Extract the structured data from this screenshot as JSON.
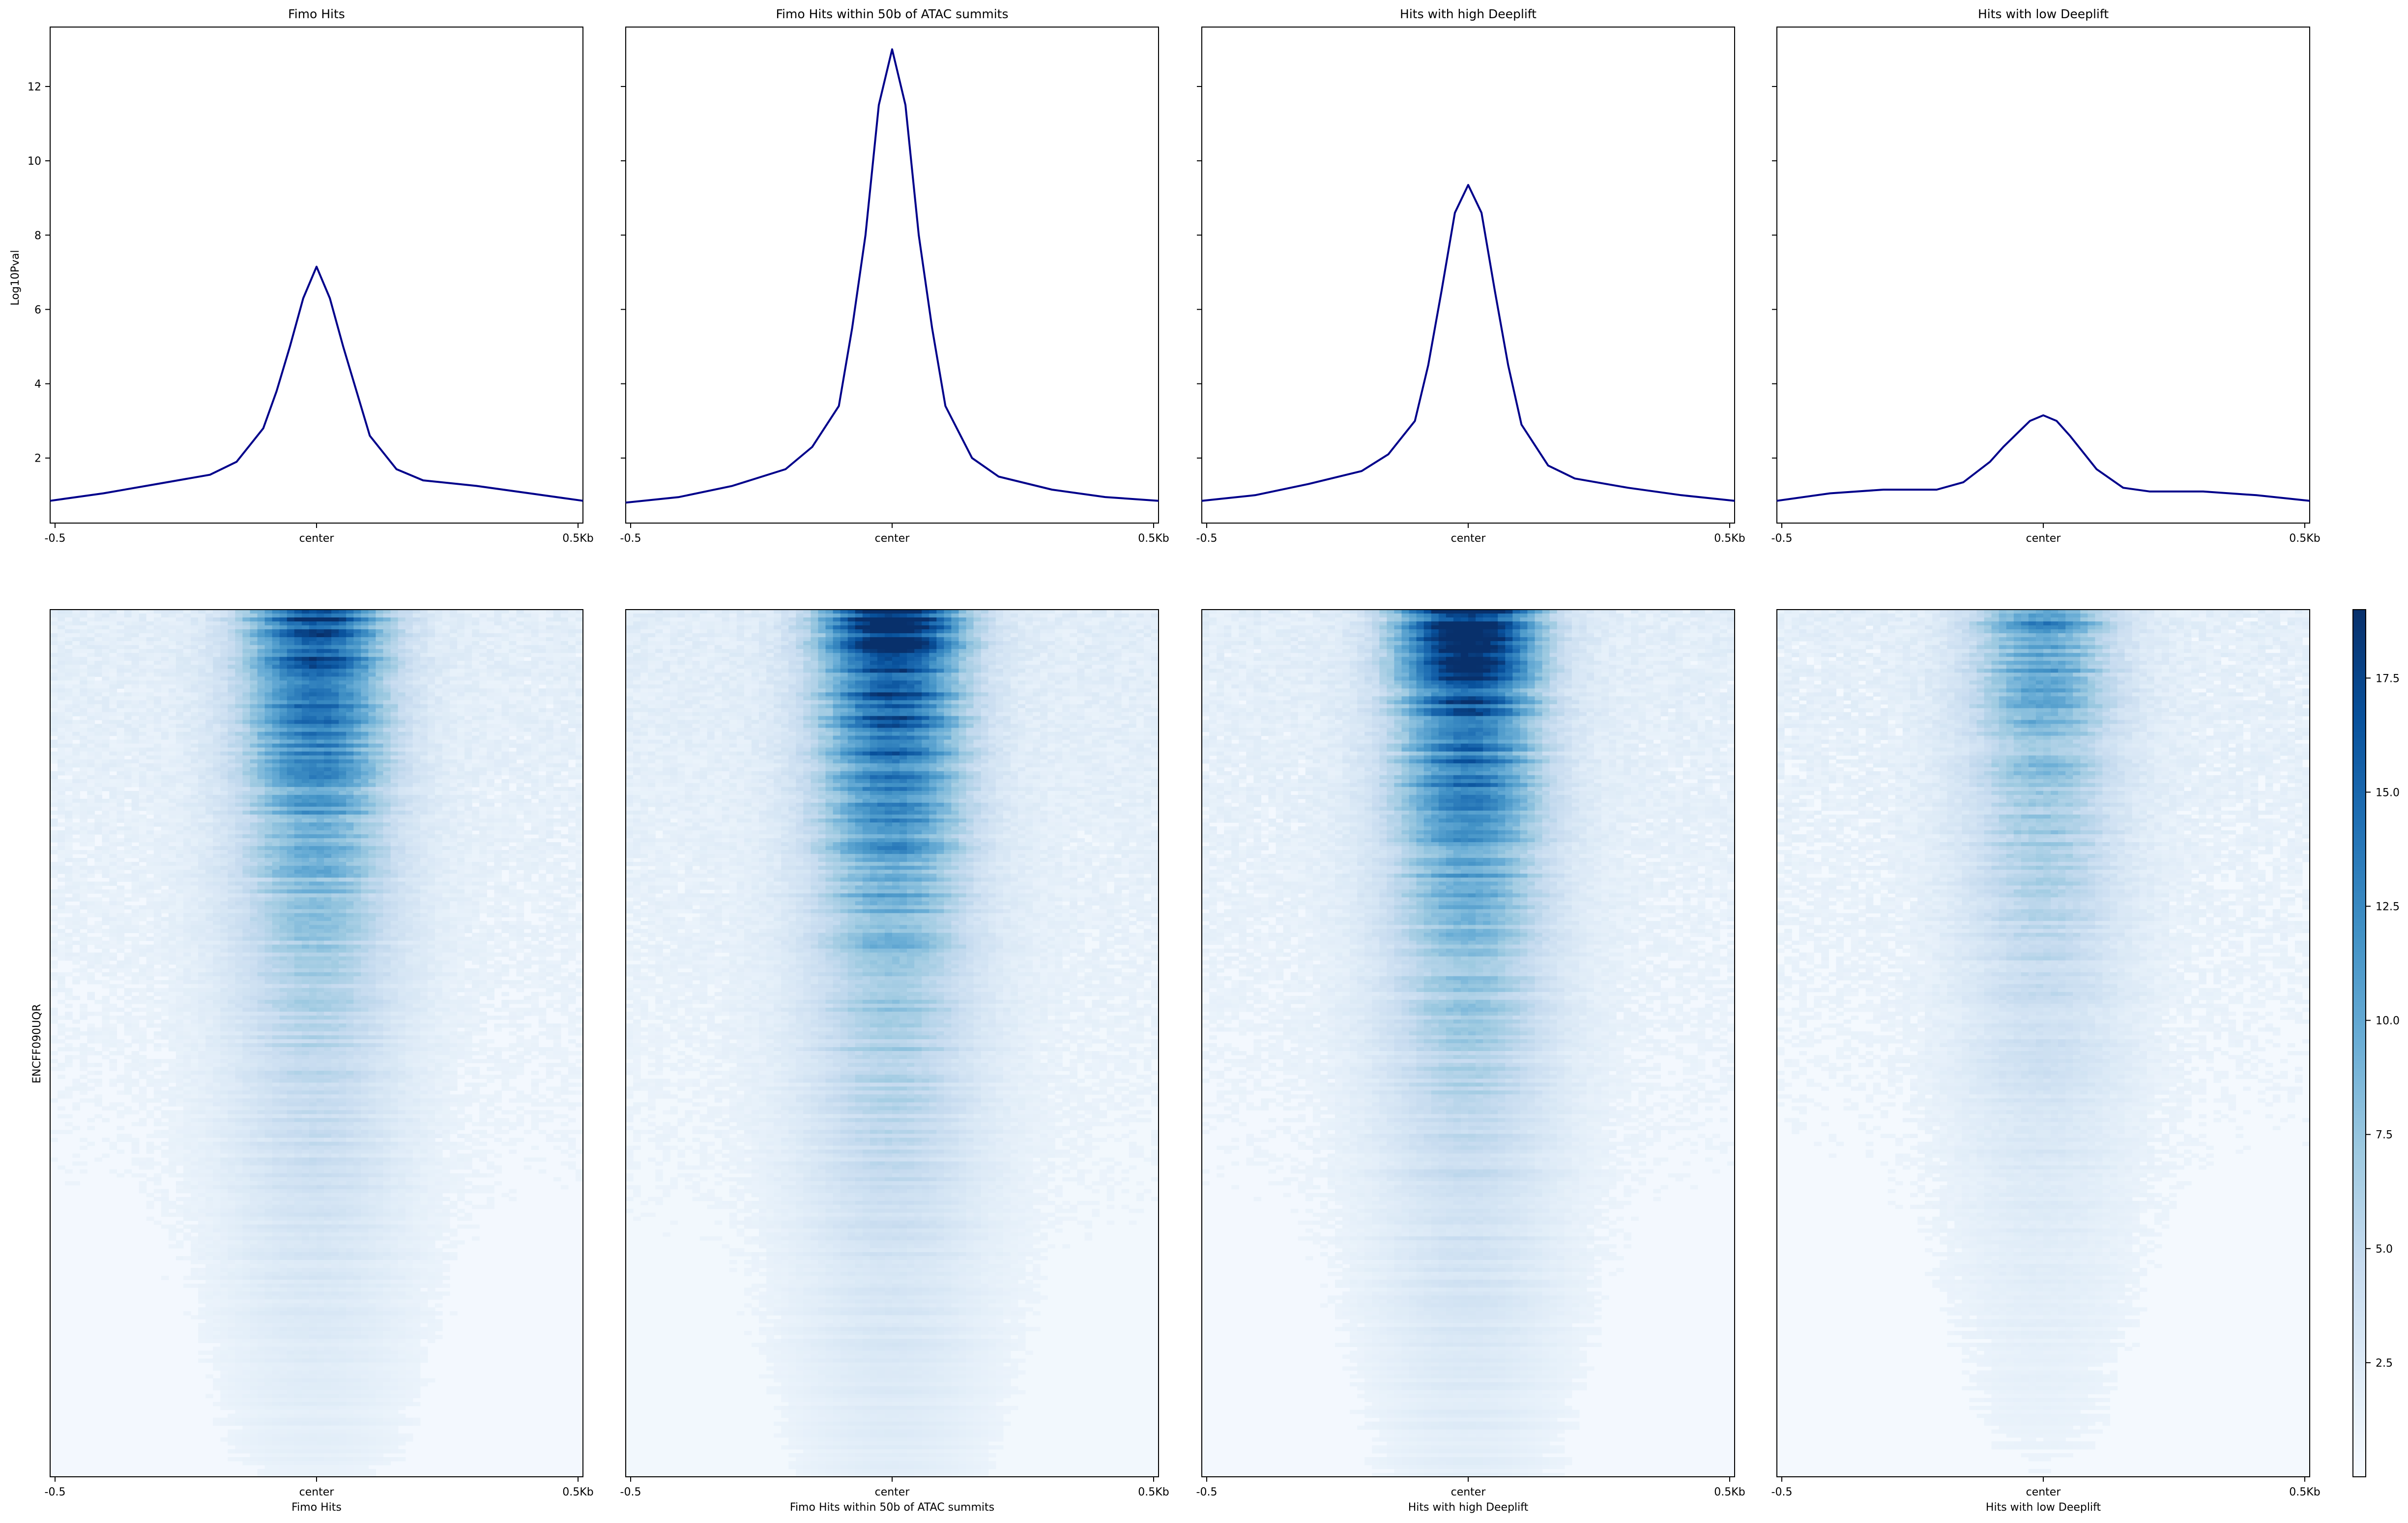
{
  "figure": {
    "ylabel_profile": "Log10Pval",
    "ylabel_heatmap": "ENCFF090UQR"
  },
  "panels": [
    {
      "title": "Fimo Hits",
      "heatmap_xlabel": "Fimo Hits"
    },
    {
      "title": "Fimo Hits within 50b of ATAC summits",
      "heatmap_xlabel": "Fimo Hits within 50b of ATAC summits"
    },
    {
      "title": "Hits with high Deeplift",
      "heatmap_xlabel": "Hits with high Deeplift"
    },
    {
      "title": "Hits with low Deeplift",
      "heatmap_xlabel": "Hits with low Deeplift"
    }
  ],
  "chart_data": [
    {
      "type": "line",
      "title": "Fimo Hits",
      "xlabel": "",
      "ylabel": "Log10Pval",
      "x_ticks": [
        "-0.5",
        "center",
        "0.5Kb"
      ],
      "xlim": [
        -500,
        500
      ],
      "ylim": [
        0.25,
        13.6
      ],
      "y_ticks": [
        2,
        4,
        6,
        8,
        10,
        12
      ],
      "line_color": "#00008b",
      "x": [
        -500,
        -400,
        -300,
        -200,
        -150,
        -100,
        -75,
        -50,
        -25,
        0,
        25,
        50,
        75,
        100,
        150,
        200,
        300,
        400,
        500
      ],
      "y": [
        0.85,
        1.05,
        1.3,
        1.55,
        1.9,
        2.8,
        3.8,
        5.0,
        6.3,
        7.15,
        6.3,
        5.0,
        3.8,
        2.6,
        1.7,
        1.4,
        1.25,
        1.05,
        0.85
      ]
    },
    {
      "type": "line",
      "title": "Fimo Hits within 50b of ATAC summits",
      "xlabel": "",
      "ylabel": "Log10Pval",
      "x_ticks": [
        "-0.5",
        "center",
        "0.5Kb"
      ],
      "xlim": [
        -500,
        500
      ],
      "ylim": [
        0.25,
        13.6
      ],
      "y_ticks": [
        2,
        4,
        6,
        8,
        10,
        12
      ],
      "line_color": "#00008b",
      "x": [
        -500,
        -400,
        -300,
        -200,
        -150,
        -100,
        -75,
        -50,
        -25,
        0,
        25,
        50,
        75,
        100,
        150,
        200,
        300,
        400,
        500
      ],
      "y": [
        0.8,
        0.95,
        1.25,
        1.7,
        2.3,
        3.4,
        5.5,
        8.0,
        11.5,
        13.0,
        11.5,
        8.0,
        5.5,
        3.4,
        2.0,
        1.5,
        1.15,
        0.95,
        0.85
      ]
    },
    {
      "type": "line",
      "title": "Hits with high Deeplift",
      "xlabel": "",
      "ylabel": "Log10Pval",
      "x_ticks": [
        "-0.5",
        "center",
        "0.5Kb"
      ],
      "xlim": [
        -500,
        500
      ],
      "ylim": [
        0.25,
        13.6
      ],
      "y_ticks": [
        2,
        4,
        6,
        8,
        10,
        12
      ],
      "line_color": "#00008b",
      "x": [
        -500,
        -400,
        -300,
        -200,
        -150,
        -100,
        -75,
        -50,
        -25,
        0,
        25,
        50,
        75,
        100,
        150,
        200,
        300,
        400,
        500
      ],
      "y": [
        0.85,
        1.0,
        1.3,
        1.65,
        2.1,
        3.0,
        4.5,
        6.5,
        8.6,
        9.35,
        8.6,
        6.5,
        4.5,
        2.9,
        1.8,
        1.45,
        1.2,
        1.0,
        0.85
      ]
    },
    {
      "type": "line",
      "title": "Hits with low Deeplift",
      "xlabel": "",
      "ylabel": "Log10Pval",
      "x_ticks": [
        "-0.5",
        "center",
        "0.5Kb"
      ],
      "xlim": [
        -500,
        500
      ],
      "ylim": [
        0.25,
        13.6
      ],
      "y_ticks": [
        2,
        4,
        6,
        8,
        10,
        12
      ],
      "line_color": "#00008b",
      "x": [
        -500,
        -400,
        -300,
        -200,
        -150,
        -100,
        -75,
        -50,
        -25,
        0,
        25,
        50,
        75,
        100,
        150,
        200,
        300,
        400,
        500
      ],
      "y": [
        0.85,
        1.05,
        1.15,
        1.15,
        1.35,
        1.9,
        2.3,
        2.65,
        3.0,
        3.15,
        3.0,
        2.6,
        2.15,
        1.7,
        1.2,
        1.1,
        1.1,
        1.0,
        0.85
      ]
    },
    {
      "type": "heatmap",
      "title": "Fimo Hits",
      "xlabel": "Fimo Hits",
      "ylabel": "ENCFF090UQR",
      "x_ticks": [
        "-0.5",
        "center",
        "0.5Kb"
      ],
      "colormap": "Blues",
      "peak_value": 19.0,
      "background_value": 0.4,
      "rows_sorted": "descending"
    },
    {
      "type": "heatmap",
      "title": "Fimo Hits within 50b of ATAC summits",
      "xlabel": "Fimo Hits within 50b of ATAC summits",
      "ylabel": "ENCFF090UQR",
      "x_ticks": [
        "-0.5",
        "center",
        "0.5Kb"
      ],
      "colormap": "Blues",
      "peak_value": 19.0,
      "background_value": 0.5,
      "rows_sorted": "descending"
    },
    {
      "type": "heatmap",
      "title": "Hits with high Deeplift",
      "xlabel": "Hits with high Deeplift",
      "ylabel": "ENCFF090UQR",
      "x_ticks": [
        "-0.5",
        "center",
        "0.5Kb"
      ],
      "colormap": "Blues",
      "peak_value": 19.0,
      "background_value": 0.4,
      "rows_sorted": "descending"
    },
    {
      "type": "heatmap",
      "title": "Hits with low Deeplift",
      "xlabel": "Hits with low Deeplift",
      "ylabel": "ENCFF090UQR",
      "x_ticks": [
        "-0.5",
        "center",
        "0.5Kb"
      ],
      "colormap": "Blues",
      "peak_value": 17.0,
      "background_value": 0.3,
      "rows_sorted": "descending"
    }
  ],
  "colorbar": {
    "colormap": "Blues",
    "vmin": 0,
    "vmax": 19,
    "ticks": [
      2.5,
      5.0,
      7.5,
      10.0,
      12.5,
      15.0,
      17.5
    ],
    "tick_labels": [
      "2.5",
      "5.0",
      "7.5",
      "10.0",
      "12.5",
      "15.0",
      "17.5"
    ],
    "colors": {
      "low": "#f7fbff",
      "mid": "#6baed6",
      "high": "#08306b"
    }
  }
}
